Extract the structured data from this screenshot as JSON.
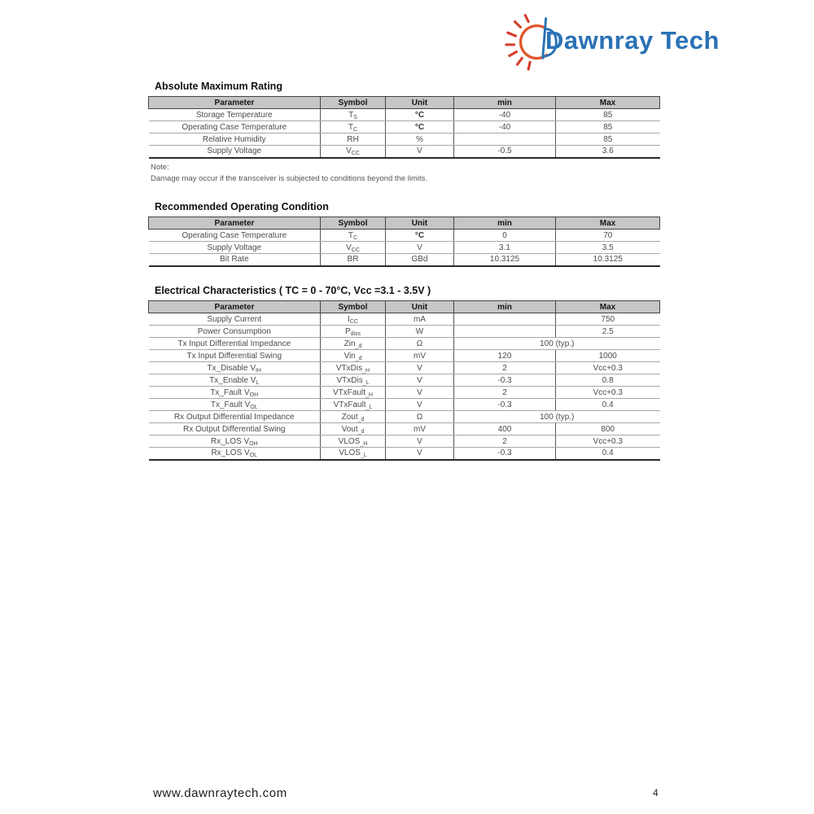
{
  "logo": {
    "text": "Dawnray Tech",
    "brand_color": "#2a72b5",
    "sun_orange": "#e0562b",
    "sun_red": "#d63d2a"
  },
  "sections": [
    {
      "title": "Absolute Maximum Rating",
      "headers": [
        "Parameter",
        "Symbol",
        "Unit",
        "min",
        "Max"
      ],
      "rows": [
        {
          "param": "Storage Temperature",
          "symbol": "T~S~",
          "unit": "°C",
          "min": "-40",
          "max": "85"
        },
        {
          "param": "Operating Case Temperature",
          "symbol": "T~C~",
          "unit": "°C",
          "min": "-40",
          "max": "85"
        },
        {
          "param": "Relative Humidity",
          "symbol": "RH",
          "unit": "%",
          "min": "",
          "max": "85"
        },
        {
          "param": "Supply Voltage",
          "symbol": "V~CC~",
          "unit": "V",
          "min": "-0.5",
          "max": "3.6"
        }
      ],
      "note_label": "Note:",
      "note_text": "Damage may occur if the transceiver is subjected to conditions beyond the limits."
    },
    {
      "title": "Recommended Operating Condition",
      "headers": [
        "Parameter",
        "Symbol",
        "Unit",
        "min",
        "Max"
      ],
      "rows": [
        {
          "param": "Operating Case Temperature",
          "symbol": "T~C~",
          "unit": "°C",
          "min": "0",
          "max": "70"
        },
        {
          "param": "Supply Voltage",
          "symbol": "V~CC~",
          "unit": "V",
          "min": "3.1",
          "max": "3.5"
        },
        {
          "param": "Bit Rate",
          "symbol": "BR",
          "unit": "GBd",
          "min": "10.3125",
          "max": "10.3125"
        }
      ]
    },
    {
      "title": "Electrical Characteristics ( TC = 0 - 70°C, Vcc =3.1 - 3.5V )",
      "headers": [
        "Parameter",
        "Symbol",
        "Unit",
        "min",
        "Max"
      ],
      "rows": [
        {
          "param": "Supply Current",
          "symbol": "I~CC~",
          "unit": "mA",
          "min": "",
          "max": "750"
        },
        {
          "param": "Power Consumption",
          "symbol": "P~diss~",
          "unit": "W",
          "min": "",
          "max": "2.5"
        },
        {
          "param": "Tx Input Differential Impedance",
          "symbol": "Zin~_d~",
          "unit": "Ω",
          "merged_min_max": "100 (typ.)"
        },
        {
          "param": "Tx Input Differential Swing",
          "symbol": "Vin~_d~",
          "unit": "mV",
          "min": "120",
          "max": "1000"
        },
        {
          "param": "Tx_Disable V~IH~",
          "symbol": "VTxDis~_H~",
          "unit": "V",
          "min": "2",
          "max": "Vcc+0.3"
        },
        {
          "param": "Tx_Enable V~L~",
          "symbol": "VTxDis~_L~",
          "unit": "V",
          "min": "-0.3",
          "max": "0.8"
        },
        {
          "param": "Tx_Fault V~OH~",
          "symbol": "VTxFault~_H~",
          "unit": "V",
          "min": "2",
          "max": "Vcc+0.3"
        },
        {
          "param": "Tx_Fault V~OL~",
          "symbol": "VTxFault~_L~",
          "unit": "V",
          "min": "-0.3",
          "max": "0.4"
        },
        {
          "param": "Rx Output Differential Impedance",
          "symbol": "Zout~_d~",
          "unit": "Ω",
          "merged_min_max": "100 (typ.)"
        },
        {
          "param": "Rx Output Differential Swing",
          "symbol": "Vout~_d~",
          "unit": "mV",
          "min": "400",
          "max": "800"
        },
        {
          "param": "Rx_LOS V~OH~",
          "symbol": "VLOS~_H~",
          "unit": "V",
          "min": "2",
          "max": "Vcc+0.3"
        },
        {
          "param": "Rx_LOS V~OL~",
          "symbol": "VLOS~_L~",
          "unit": "V",
          "min": "-0.3",
          "max": "0.4"
        }
      ]
    }
  ],
  "footer": {
    "website": "www.dawnraytech.com",
    "page_number": "4"
  }
}
